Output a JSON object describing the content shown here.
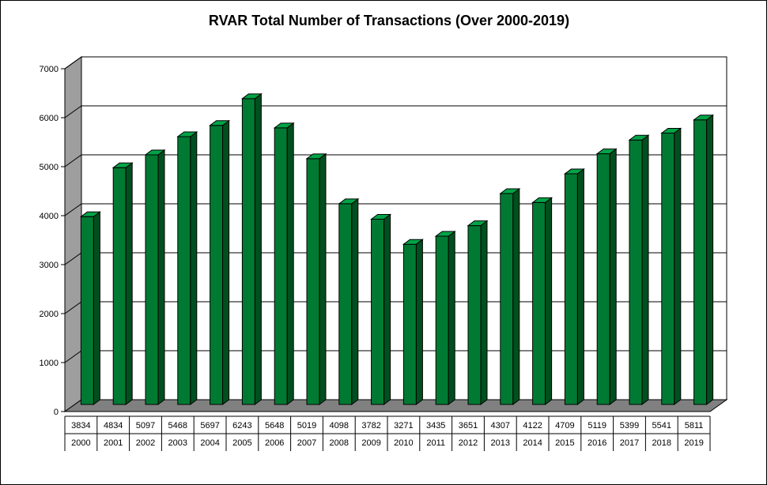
{
  "chart_data": {
    "type": "bar",
    "title": "RVAR Total Number of Transactions (Over 2000-2019)",
    "xlabel": "",
    "ylabel": "",
    "ylim": [
      0,
      7000
    ],
    "yticks": [
      "0",
      "1000",
      "2000",
      "3000",
      "4000",
      "5000",
      "6000",
      "7000"
    ],
    "grid": true,
    "style": "3d",
    "categories": [
      "2000",
      "2001",
      "2002",
      "2003",
      "2004",
      "2005",
      "2006",
      "2007",
      "2008",
      "2009",
      "2010",
      "2011",
      "2012",
      "2013",
      "2014",
      "2015",
      "2016",
      "2017",
      "2018",
      "2019"
    ],
    "values": [
      3834,
      4834,
      5097,
      5468,
      5697,
      6243,
      5648,
      5019,
      4098,
      3782,
      3271,
      3435,
      3651,
      4307,
      4122,
      4709,
      5119,
      5399,
      5541,
      5811
    ],
    "data_table": true,
    "colors": {
      "bar_front": "#007A33",
      "bar_side": "#004F1F",
      "bar_top": "#00A347",
      "left_wall": "#9E9E9E",
      "floor": "#808080",
      "plot_bg": "#FFFFFF",
      "gridline": "#000000"
    }
  }
}
